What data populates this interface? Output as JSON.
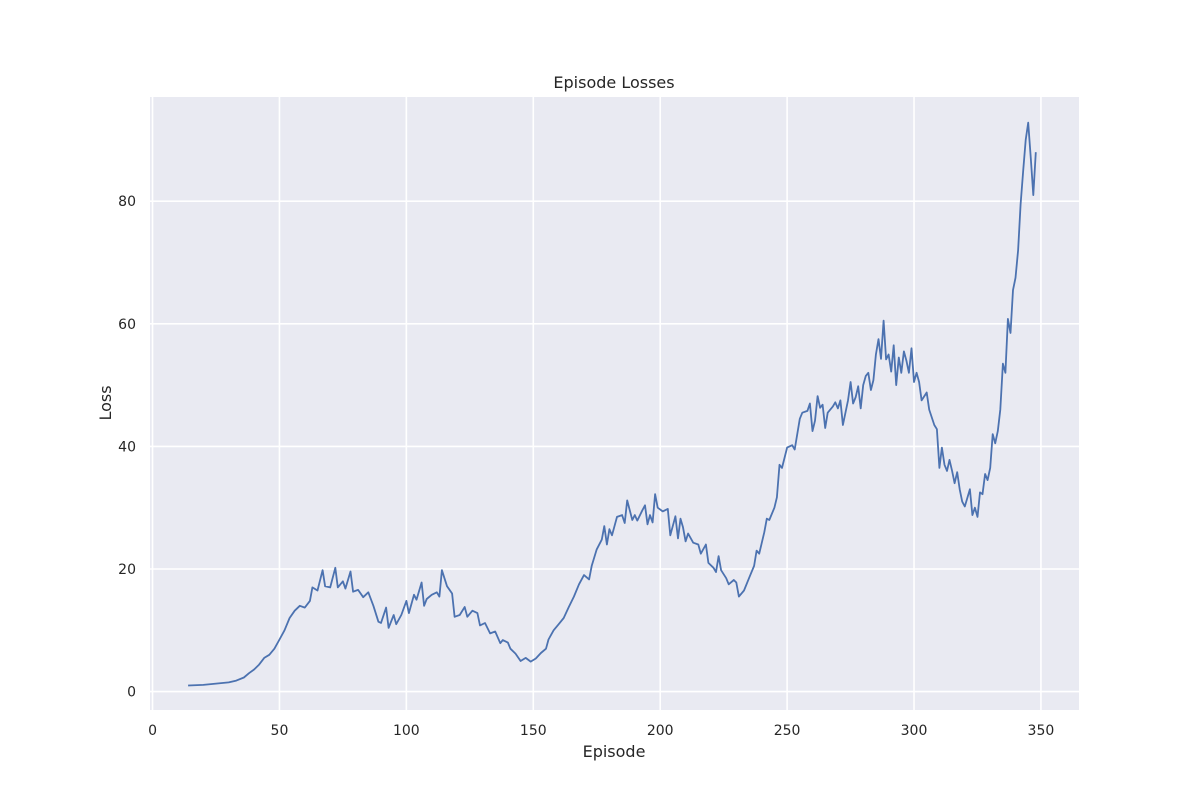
{
  "chart_data": {
    "type": "line",
    "title": "Episode Losses",
    "xlabel": "Episode",
    "ylabel": "Loss",
    "xlim": [
      -1,
      365
    ],
    "ylim": [
      -3,
      97
    ],
    "xticks": [
      0,
      50,
      100,
      150,
      200,
      250,
      300,
      350
    ],
    "yticks": [
      0,
      20,
      40,
      60,
      80
    ],
    "grid": true,
    "background": "#e9eaf2",
    "grid_color": "#ffffff",
    "line_color": "#4c72b0",
    "series": [
      {
        "points": [
          [
            14,
            1.0
          ],
          [
            20,
            1.1
          ],
          [
            25,
            1.3
          ],
          [
            30,
            1.5
          ],
          [
            33,
            1.8
          ],
          [
            36,
            2.3
          ],
          [
            38,
            3.0
          ],
          [
            40,
            3.6
          ],
          [
            42,
            4.4
          ],
          [
            44,
            5.5
          ],
          [
            46,
            6.0
          ],
          [
            48,
            7.0
          ],
          [
            50,
            8.5
          ],
          [
            52,
            10.0
          ],
          [
            54,
            12.0
          ],
          [
            56,
            13.2
          ],
          [
            58,
            14.0
          ],
          [
            60,
            13.7
          ],
          [
            62,
            14.8
          ],
          [
            63,
            17.0
          ],
          [
            65,
            16.5
          ],
          [
            67,
            19.8
          ],
          [
            68,
            17.2
          ],
          [
            70,
            17.0
          ],
          [
            72,
            20.2
          ],
          [
            73,
            17.0
          ],
          [
            75,
            18.0
          ],
          [
            76,
            16.8
          ],
          [
            78,
            19.6
          ],
          [
            79,
            16.3
          ],
          [
            81,
            16.6
          ],
          [
            83,
            15.4
          ],
          [
            85,
            16.2
          ],
          [
            87,
            14.0
          ],
          [
            89,
            11.4
          ],
          [
            90,
            11.2
          ],
          [
            92,
            13.7
          ],
          [
            93,
            10.4
          ],
          [
            95,
            12.5
          ],
          [
            96,
            11.0
          ],
          [
            98,
            12.5
          ],
          [
            100,
            14.8
          ],
          [
            101,
            12.8
          ],
          [
            103,
            15.8
          ],
          [
            104,
            15.0
          ],
          [
            106,
            17.8
          ],
          [
            107,
            14.0
          ],
          [
            108,
            15.1
          ],
          [
            110,
            15.8
          ],
          [
            112,
            16.2
          ],
          [
            113,
            15.5
          ],
          [
            114,
            19.8
          ],
          [
            116,
            17.2
          ],
          [
            118,
            16.0
          ],
          [
            119,
            12.2
          ],
          [
            121,
            12.5
          ],
          [
            123,
            13.8
          ],
          [
            124,
            12.2
          ],
          [
            126,
            13.2
          ],
          [
            128,
            12.8
          ],
          [
            129,
            10.8
          ],
          [
            131,
            11.2
          ],
          [
            133,
            9.5
          ],
          [
            135,
            9.8
          ],
          [
            137,
            7.9
          ],
          [
            138,
            8.4
          ],
          [
            140,
            8.0
          ],
          [
            141,
            7.0
          ],
          [
            143,
            6.2
          ],
          [
            145,
            5.0
          ],
          [
            147,
            5.5
          ],
          [
            149,
            4.9
          ],
          [
            151,
            5.4
          ],
          [
            153,
            6.3
          ],
          [
            155,
            7.0
          ],
          [
            156,
            8.5
          ],
          [
            158,
            10.0
          ],
          [
            160,
            11.0
          ],
          [
            162,
            12.0
          ],
          [
            164,
            13.8
          ],
          [
            166,
            15.5
          ],
          [
            168,
            17.5
          ],
          [
            170,
            19.0
          ],
          [
            172,
            18.3
          ],
          [
            173,
            20.5
          ],
          [
            175,
            23.2
          ],
          [
            177,
            24.8
          ],
          [
            178,
            27.0
          ],
          [
            179,
            24.0
          ],
          [
            180,
            26.5
          ],
          [
            181,
            25.5
          ],
          [
            183,
            28.5
          ],
          [
            185,
            28.8
          ],
          [
            186,
            27.5
          ],
          [
            187,
            31.2
          ],
          [
            189,
            28.0
          ],
          [
            190,
            28.8
          ],
          [
            191,
            27.9
          ],
          [
            193,
            29.6
          ],
          [
            194,
            30.4
          ],
          [
            195,
            27.3
          ],
          [
            196,
            28.8
          ],
          [
            197,
            27.6
          ],
          [
            198,
            32.2
          ],
          [
            199,
            30.0
          ],
          [
            201,
            29.4
          ],
          [
            203,
            29.8
          ],
          [
            204,
            25.5
          ],
          [
            206,
            28.6
          ],
          [
            207,
            25.0
          ],
          [
            208,
            28.2
          ],
          [
            209,
            26.8
          ],
          [
            210,
            24.5
          ],
          [
            211,
            25.8
          ],
          [
            213,
            24.3
          ],
          [
            215,
            24.0
          ],
          [
            216,
            22.5
          ],
          [
            218,
            24.0
          ],
          [
            219,
            21.0
          ],
          [
            221,
            20.2
          ],
          [
            222,
            19.5
          ],
          [
            223,
            22.1
          ],
          [
            224,
            19.8
          ],
          [
            226,
            18.5
          ],
          [
            227,
            17.5
          ],
          [
            229,
            18.2
          ],
          [
            230,
            17.8
          ],
          [
            231,
            15.5
          ],
          [
            233,
            16.5
          ],
          [
            235,
            18.5
          ],
          [
            237,
            20.5
          ],
          [
            238,
            23.0
          ],
          [
            239,
            22.5
          ],
          [
            241,
            26.0
          ],
          [
            242,
            28.2
          ],
          [
            243,
            28.0
          ],
          [
            245,
            30.0
          ],
          [
            246,
            31.7
          ],
          [
            247,
            37.0
          ],
          [
            248,
            36.5
          ],
          [
            250,
            39.8
          ],
          [
            252,
            40.2
          ],
          [
            253,
            39.5
          ],
          [
            255,
            44.5
          ],
          [
            256,
            45.5
          ],
          [
            258,
            45.8
          ],
          [
            259,
            47.0
          ],
          [
            260,
            42.5
          ],
          [
            261,
            44.2
          ],
          [
            262,
            48.2
          ],
          [
            263,
            46.3
          ],
          [
            264,
            46.8
          ],
          [
            265,
            43.0
          ],
          [
            266,
            45.5
          ],
          [
            268,
            46.5
          ],
          [
            269,
            47.2
          ],
          [
            270,
            46.2
          ],
          [
            271,
            47.5
          ],
          [
            272,
            43.5
          ],
          [
            274,
            47.5
          ],
          [
            275,
            50.5
          ],
          [
            276,
            47.0
          ],
          [
            277,
            48.0
          ],
          [
            278,
            49.8
          ],
          [
            279,
            46.2
          ],
          [
            280,
            50.0
          ],
          [
            281,
            51.5
          ],
          [
            282,
            52.0
          ],
          [
            283,
            49.2
          ],
          [
            284,
            50.8
          ],
          [
            285,
            55.0
          ],
          [
            286,
            57.5
          ],
          [
            287,
            54.3
          ],
          [
            288,
            60.5
          ],
          [
            289,
            54.2
          ],
          [
            290,
            55.0
          ],
          [
            291,
            52.2
          ],
          [
            292,
            56.5
          ],
          [
            293,
            50.0
          ],
          [
            294,
            54.5
          ],
          [
            295,
            52.0
          ],
          [
            296,
            55.5
          ],
          [
            297,
            54.0
          ],
          [
            298,
            52.0
          ],
          [
            299,
            56.0
          ],
          [
            300,
            50.5
          ],
          [
            301,
            52.0
          ],
          [
            302,
            50.5
          ],
          [
            303,
            47.5
          ],
          [
            305,
            48.8
          ],
          [
            306,
            46.0
          ],
          [
            308,
            43.5
          ],
          [
            309,
            42.8
          ],
          [
            310,
            36.5
          ],
          [
            311,
            39.8
          ],
          [
            312,
            37.0
          ],
          [
            313,
            36.0
          ],
          [
            314,
            37.8
          ],
          [
            315,
            36.0
          ],
          [
            316,
            34.0
          ],
          [
            317,
            35.8
          ],
          [
            318,
            33.0
          ],
          [
            319,
            31.0
          ],
          [
            320,
            30.2
          ],
          [
            322,
            33.0
          ],
          [
            323,
            28.8
          ],
          [
            324,
            30.0
          ],
          [
            325,
            28.5
          ],
          [
            326,
            32.5
          ],
          [
            327,
            32.2
          ],
          [
            328,
            35.5
          ],
          [
            329,
            34.5
          ],
          [
            330,
            36.5
          ],
          [
            331,
            42.0
          ],
          [
            332,
            40.5
          ],
          [
            333,
            42.5
          ],
          [
            334,
            46.0
          ],
          [
            335,
            53.5
          ],
          [
            336,
            52.0
          ],
          [
            337,
            60.8
          ],
          [
            338,
            58.5
          ],
          [
            339,
            65.5
          ],
          [
            340,
            67.5
          ],
          [
            341,
            72.0
          ],
          [
            342,
            79.5
          ],
          [
            343,
            85.0
          ],
          [
            344,
            90.0
          ],
          [
            345,
            92.8
          ],
          [
            346,
            87.0
          ],
          [
            347,
            81.0
          ],
          [
            348,
            88.0
          ]
        ]
      }
    ]
  }
}
